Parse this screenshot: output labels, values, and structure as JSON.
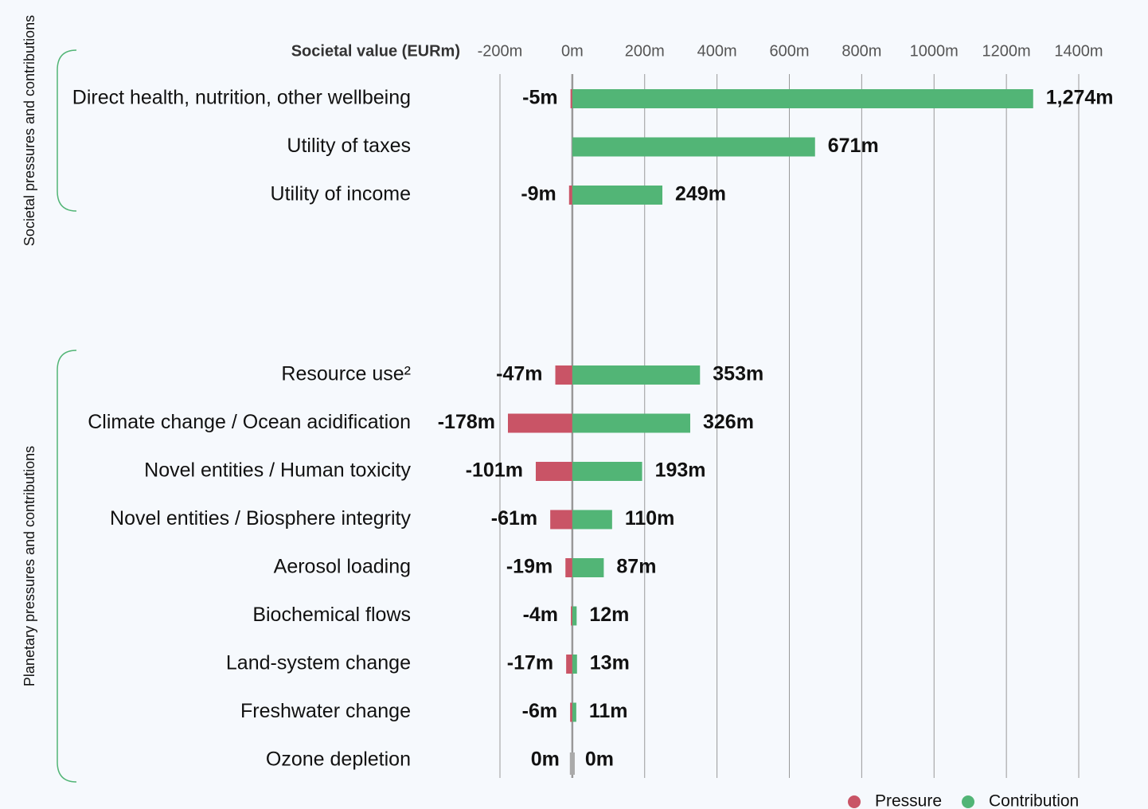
{
  "chart_data": {
    "type": "diverging-bar",
    "x_label": "Societal value (EURm)",
    "groups": [
      "Societal pressures and contributions",
      "Planetary pressures and contributions"
    ],
    "categories": [
      "Direct health, nutrition, other wellbeing",
      "Utility of taxes",
      "Utility of income",
      "Resource use²",
      "Climate change / Ocean acidification",
      "Novel entities / Human toxicity",
      "Novel entities / Biosphere integrity",
      "Aerosol loading",
      "Biochemical flows",
      "Land-system change",
      "Freshwater change",
      "Ozone depletion"
    ],
    "series": [
      {
        "name": "Pressure",
        "color": "#c95466",
        "values": [
          -5,
          null,
          -9,
          -47,
          -178,
          -101,
          -61,
          -19,
          -4,
          -17,
          -6,
          0
        ],
        "value_labels": [
          "-5m",
          null,
          "-9m",
          "-47m",
          "-178m",
          "-101m",
          "-61m",
          "-19m",
          "-4m",
          "-17m",
          "-6m",
          "0m"
        ]
      },
      {
        "name": "Contribution",
        "color": "#52b576",
        "values": [
          1274,
          671,
          249,
          353,
          326,
          193,
          110,
          87,
          12,
          13,
          11,
          0
        ],
        "value_labels": [
          "1,274m",
          "671m",
          "249m",
          "353m",
          "326m",
          "193m",
          "110m",
          "87m",
          "12m",
          "13m",
          "11m",
          "0m"
        ]
      }
    ],
    "xlim": [
      -200,
      1400
    ],
    "xticks": [
      {
        "value": -200,
        "label": "-200m"
      },
      {
        "value": 0,
        "label": "0m"
      },
      {
        "value": 200,
        "label": "200m"
      },
      {
        "value": 400,
        "label": "400m"
      },
      {
        "value": 600,
        "label": "600m"
      },
      {
        "value": 800,
        "label": "800m"
      },
      {
        "value": 1000,
        "label": "1000m"
      },
      {
        "value": 1200,
        "label": "1200m"
      },
      {
        "value": 1400,
        "label": "1400m"
      }
    ],
    "grid": true,
    "legend": "bottom-right"
  }
}
